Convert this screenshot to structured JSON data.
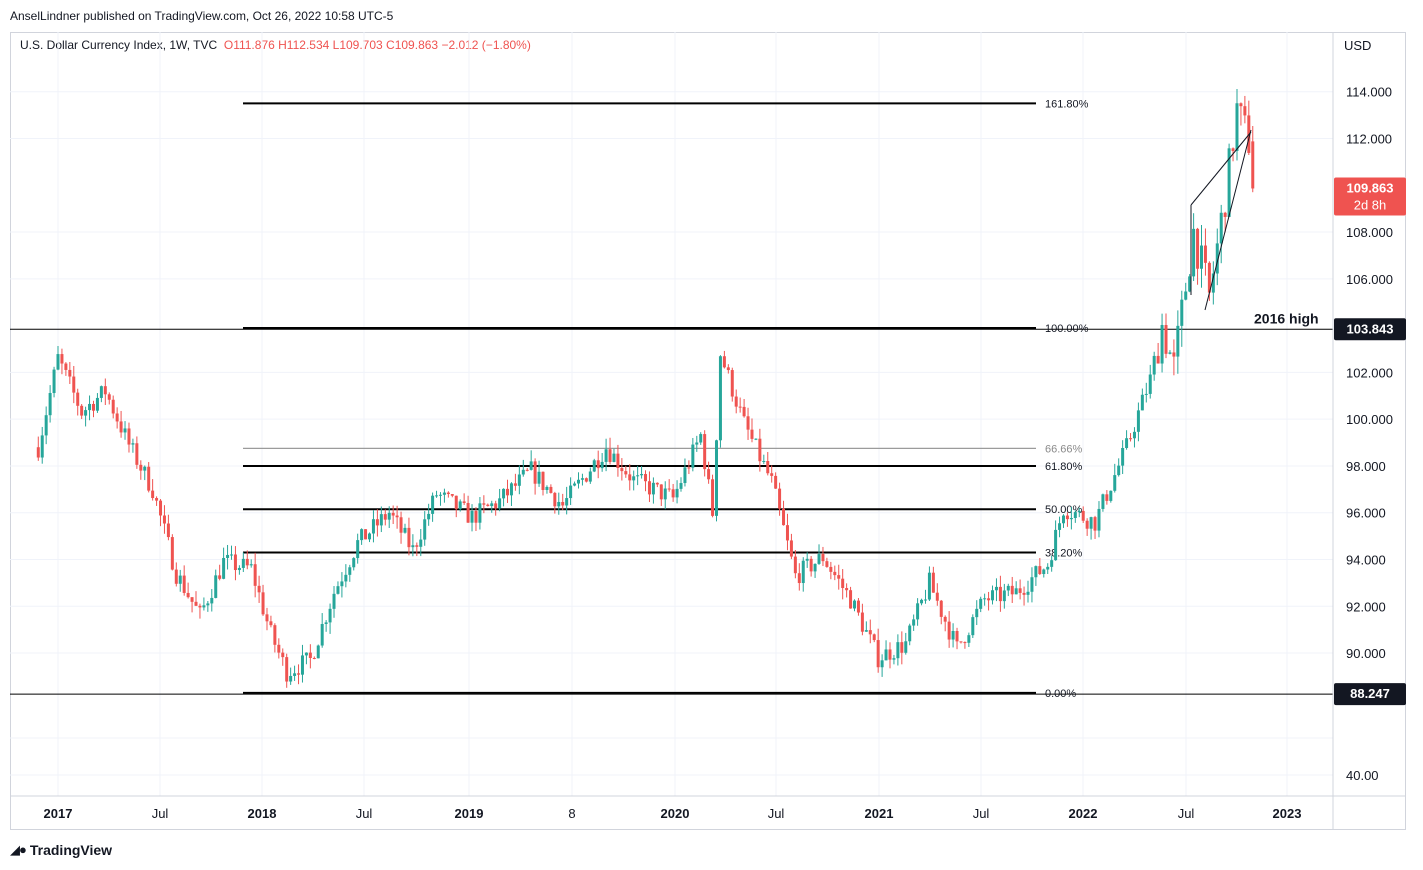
{
  "publisher": "AnselLindner published on TradingView.com, Oct 26, 2022 10:58 UTC-5",
  "symbol": {
    "name": "U.S. Dollar Currency Index, 1W, TVC",
    "open": "O111.876",
    "high": "H112.534",
    "low": "L109.703",
    "close": "C109.863",
    "change": "−2.012 (−1.80%)"
  },
  "footer": {
    "logo_icon": "tradingview-logo-icon",
    "brand": "TradingView"
  },
  "colors": {
    "up": "#26a69a",
    "down": "#ef5350",
    "level_line": "#000000",
    "label_red": "#ef5350",
    "label_black": "#131722"
  },
  "chart_data": {
    "type": "candlestick",
    "currency": "USD",
    "y_ticks": [
      114.0,
      112.0,
      108.0,
      106.0,
      102.0,
      100.0,
      98.0,
      96.0,
      94.0,
      92.0,
      90.0,
      40.0
    ],
    "y_tick_labels": [
      "114.000",
      "112.000",
      "108.000",
      "106.000",
      "102.000",
      "100.000",
      "98.000",
      "96.000",
      "94.000",
      "92.000",
      "90.000",
      "40.00"
    ],
    "x_ticks": [
      "2017",
      "Jul",
      "2018",
      "Jul",
      "2019",
      "8",
      "2020",
      "Jul",
      "2021",
      "Jul",
      "2022",
      "Jul",
      "2023"
    ],
    "price_labels": [
      {
        "value": "109.863",
        "sub": "2d 8h",
        "style": "red"
      },
      {
        "value": "103.843",
        "style": "black"
      },
      {
        "value": "88.247",
        "style": "black"
      }
    ],
    "fib_levels": [
      {
        "label": "161.80%",
        "price": 113.5
      },
      {
        "label": "100.00%",
        "price": 103.9
      },
      {
        "label": "66.66%",
        "price": 98.75
      },
      {
        "label": "61.80%",
        "price": 98.0
      },
      {
        "label": "50.00%",
        "price": 96.15
      },
      {
        "label": "38.20%",
        "price": 94.3
      },
      {
        "label": "0.00%",
        "price": 88.3
      }
    ],
    "annotations": [
      {
        "text": "2016 high",
        "price": 103.84
      }
    ],
    "horizontal_lines": [
      103.843,
      88.247
    ],
    "anchor_points": [
      {
        "date": "2016-11-27",
        "close": 98.8
      },
      {
        "date": "2017-01-01",
        "close": 102.6
      },
      {
        "date": "2017-02-12",
        "close": 100.3
      },
      {
        "date": "2017-03-26",
        "close": 101.2
      },
      {
        "date": "2017-05-07",
        "close": 98.9
      },
      {
        "date": "2017-06-18",
        "close": 97.0
      },
      {
        "date": "2017-07-30",
        "close": 93.4
      },
      {
        "date": "2017-09-10",
        "close": 91.6
      },
      {
        "date": "2017-10-22",
        "close": 93.9
      },
      {
        "date": "2017-12-10",
        "close": 93.6
      },
      {
        "date": "2018-01-14",
        "close": 90.8
      },
      {
        "date": "2018-02-11",
        "close": 89.2
      },
      {
        "date": "2018-03-25",
        "close": 89.7
      },
      {
        "date": "2018-05-06",
        "close": 92.6
      },
      {
        "date": "2018-06-17",
        "close": 94.7
      },
      {
        "date": "2018-08-12",
        "close": 96.0
      },
      {
        "date": "2018-09-23",
        "close": 94.4
      },
      {
        "date": "2018-11-04",
        "close": 96.8
      },
      {
        "date": "2019-01-06",
        "close": 95.8
      },
      {
        "date": "2019-02-24",
        "close": 96.5
      },
      {
        "date": "2019-04-21",
        "close": 97.8
      },
      {
        "date": "2019-06-16",
        "close": 96.3
      },
      {
        "date": "2019-09-01",
        "close": 98.8
      },
      {
        "date": "2019-10-20",
        "close": 97.4
      },
      {
        "date": "2019-12-29",
        "close": 96.6
      },
      {
        "date": "2020-02-16",
        "close": 99.3
      },
      {
        "date": "2020-03-08",
        "close": 96.0
      },
      {
        "date": "2020-03-22",
        "close": 102.8
      },
      {
        "date": "2020-05-03",
        "close": 99.8
      },
      {
        "date": "2020-06-21",
        "close": 97.3
      },
      {
        "date": "2020-08-02",
        "close": 93.3
      },
      {
        "date": "2020-09-20",
        "close": 94.1
      },
      {
        "date": "2020-11-08",
        "close": 92.3
      },
      {
        "date": "2020-12-27",
        "close": 89.8
      },
      {
        "date": "2021-02-14",
        "close": 90.4
      },
      {
        "date": "2021-03-28",
        "close": 93.0
      },
      {
        "date": "2021-05-16",
        "close": 90.2
      },
      {
        "date": "2021-07-04",
        "close": 92.3
      },
      {
        "date": "2021-08-29",
        "close": 92.6
      },
      {
        "date": "2021-10-24",
        "close": 93.8
      },
      {
        "date": "2021-11-21",
        "close": 96.2
      },
      {
        "date": "2022-01-16",
        "close": 95.6
      },
      {
        "date": "2022-03-13",
        "close": 98.8
      },
      {
        "date": "2022-04-24",
        "close": 101.7
      },
      {
        "date": "2022-05-15",
        "close": 104.0
      },
      {
        "date": "2022-06-05",
        "close": 102.2
      },
      {
        "date": "2022-07-10",
        "close": 108.0
      },
      {
        "date": "2022-08-07",
        "close": 105.2
      },
      {
        "date": "2022-09-04",
        "close": 109.5
      },
      {
        "date": "2022-09-25",
        "close": 113.2
      },
      {
        "date": "2022-10-16",
        "close": 111.9
      },
      {
        "date": "2022-10-23",
        "close": 109.863
      }
    ]
  }
}
